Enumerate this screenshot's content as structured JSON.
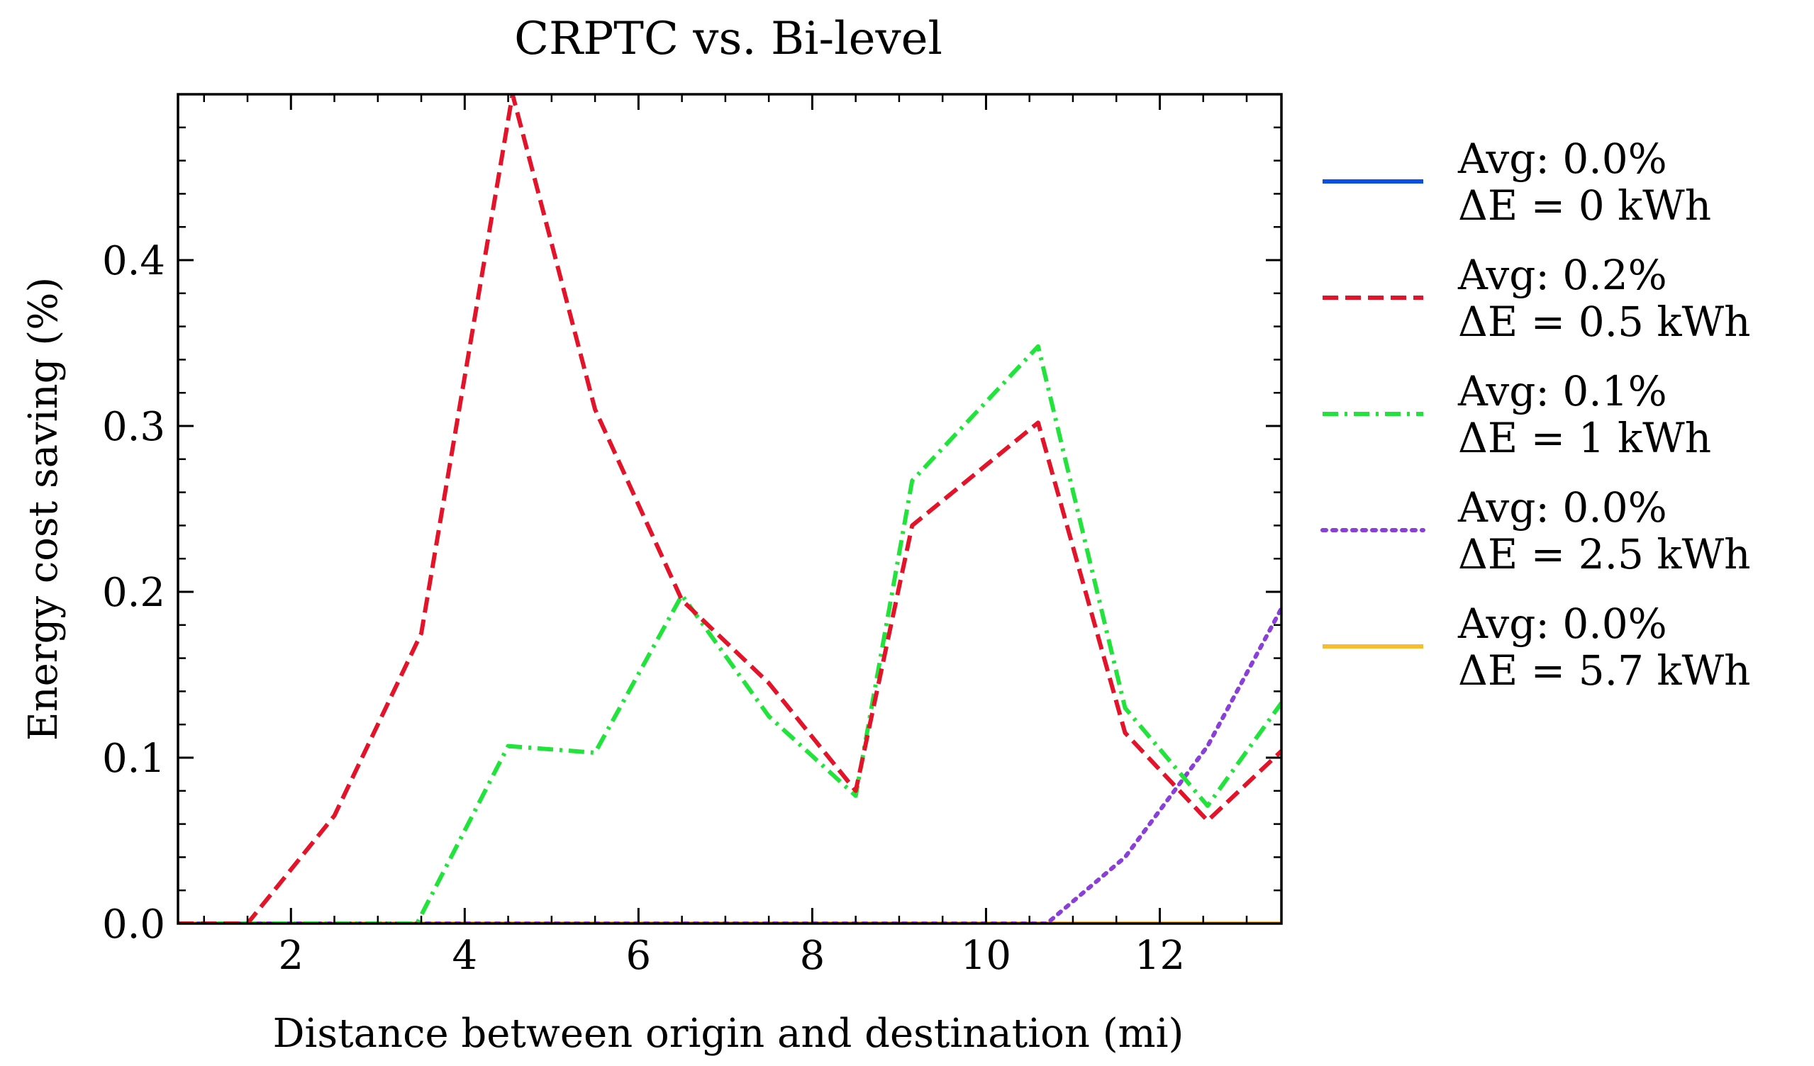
{
  "chart_data": {
    "type": "line",
    "title": "CRPTC vs. Bi-level",
    "xlabel": "Distance between origin and destination (mi)",
    "ylabel": "Energy cost saving (%)",
    "xlim": [
      0.7,
      13.4
    ],
    "ylim": [
      0.0,
      0.5
    ],
    "x_ticks": [
      2,
      4,
      6,
      8,
      10,
      12
    ],
    "x_tick_labels": [
      "2",
      "4",
      "6",
      "8",
      "10",
      "12"
    ],
    "y_ticks": [
      0.0,
      0.1,
      0.2,
      0.3,
      0.4
    ],
    "y_tick_labels": [
      "0.0",
      "0.1",
      "0.2",
      "0.3",
      "0.4"
    ],
    "legend_position": "right-outside",
    "series": [
      {
        "name": "Avg: 0.0%",
        "name2": "ΔE = 0 kWh",
        "color": "#0C4EE8",
        "dash": "solid",
        "x": [
          0.7,
          13.4
        ],
        "y": [
          0.0,
          0.0
        ]
      },
      {
        "name": "Avg: 0.2%",
        "name2": "ΔE = 0.5 kWh",
        "color": "#E3142A",
        "dash": "dashed",
        "x": [
          0.7,
          1.5,
          2.5,
          3.5,
          4.55,
          5.5,
          6.5,
          7.5,
          8.5,
          9.15,
          10.6,
          11.6,
          12.55,
          13.4
        ],
        "y": [
          0.0,
          0.0,
          0.065,
          0.175,
          0.5,
          0.31,
          0.195,
          0.145,
          0.08,
          0.24,
          0.302,
          0.115,
          0.062,
          0.104
        ]
      },
      {
        "name": "Avg: 0.1%",
        "name2": "ΔE = 1 kWh",
        "color": "#22E33C",
        "dash": "dashdot",
        "x": [
          0.7,
          3.45,
          4.5,
          5.5,
          6.5,
          7.5,
          8.5,
          9.15,
          10.6,
          11.6,
          12.55,
          13.4
        ],
        "y": [
          0.0,
          0.0,
          0.107,
          0.103,
          0.198,
          0.125,
          0.077,
          0.267,
          0.348,
          0.13,
          0.071,
          0.133
        ]
      },
      {
        "name": "Avg: 0.0%",
        "name2": "ΔE = 2.5 kWh",
        "color": "#8A3FD9",
        "dash": "dotted",
        "x": [
          0.7,
          10.7,
          11.6,
          12.55,
          13.4
        ],
        "y": [
          0.0,
          0.0,
          0.04,
          0.107,
          0.19
        ]
      },
      {
        "name": "Avg: 0.0%",
        "name2": "ΔE = 5.7 kWh",
        "color": "#F9BC2E",
        "dash": "solid",
        "x": [
          0.7,
          13.4
        ],
        "y": [
          0.0,
          0.0
        ]
      }
    ]
  }
}
